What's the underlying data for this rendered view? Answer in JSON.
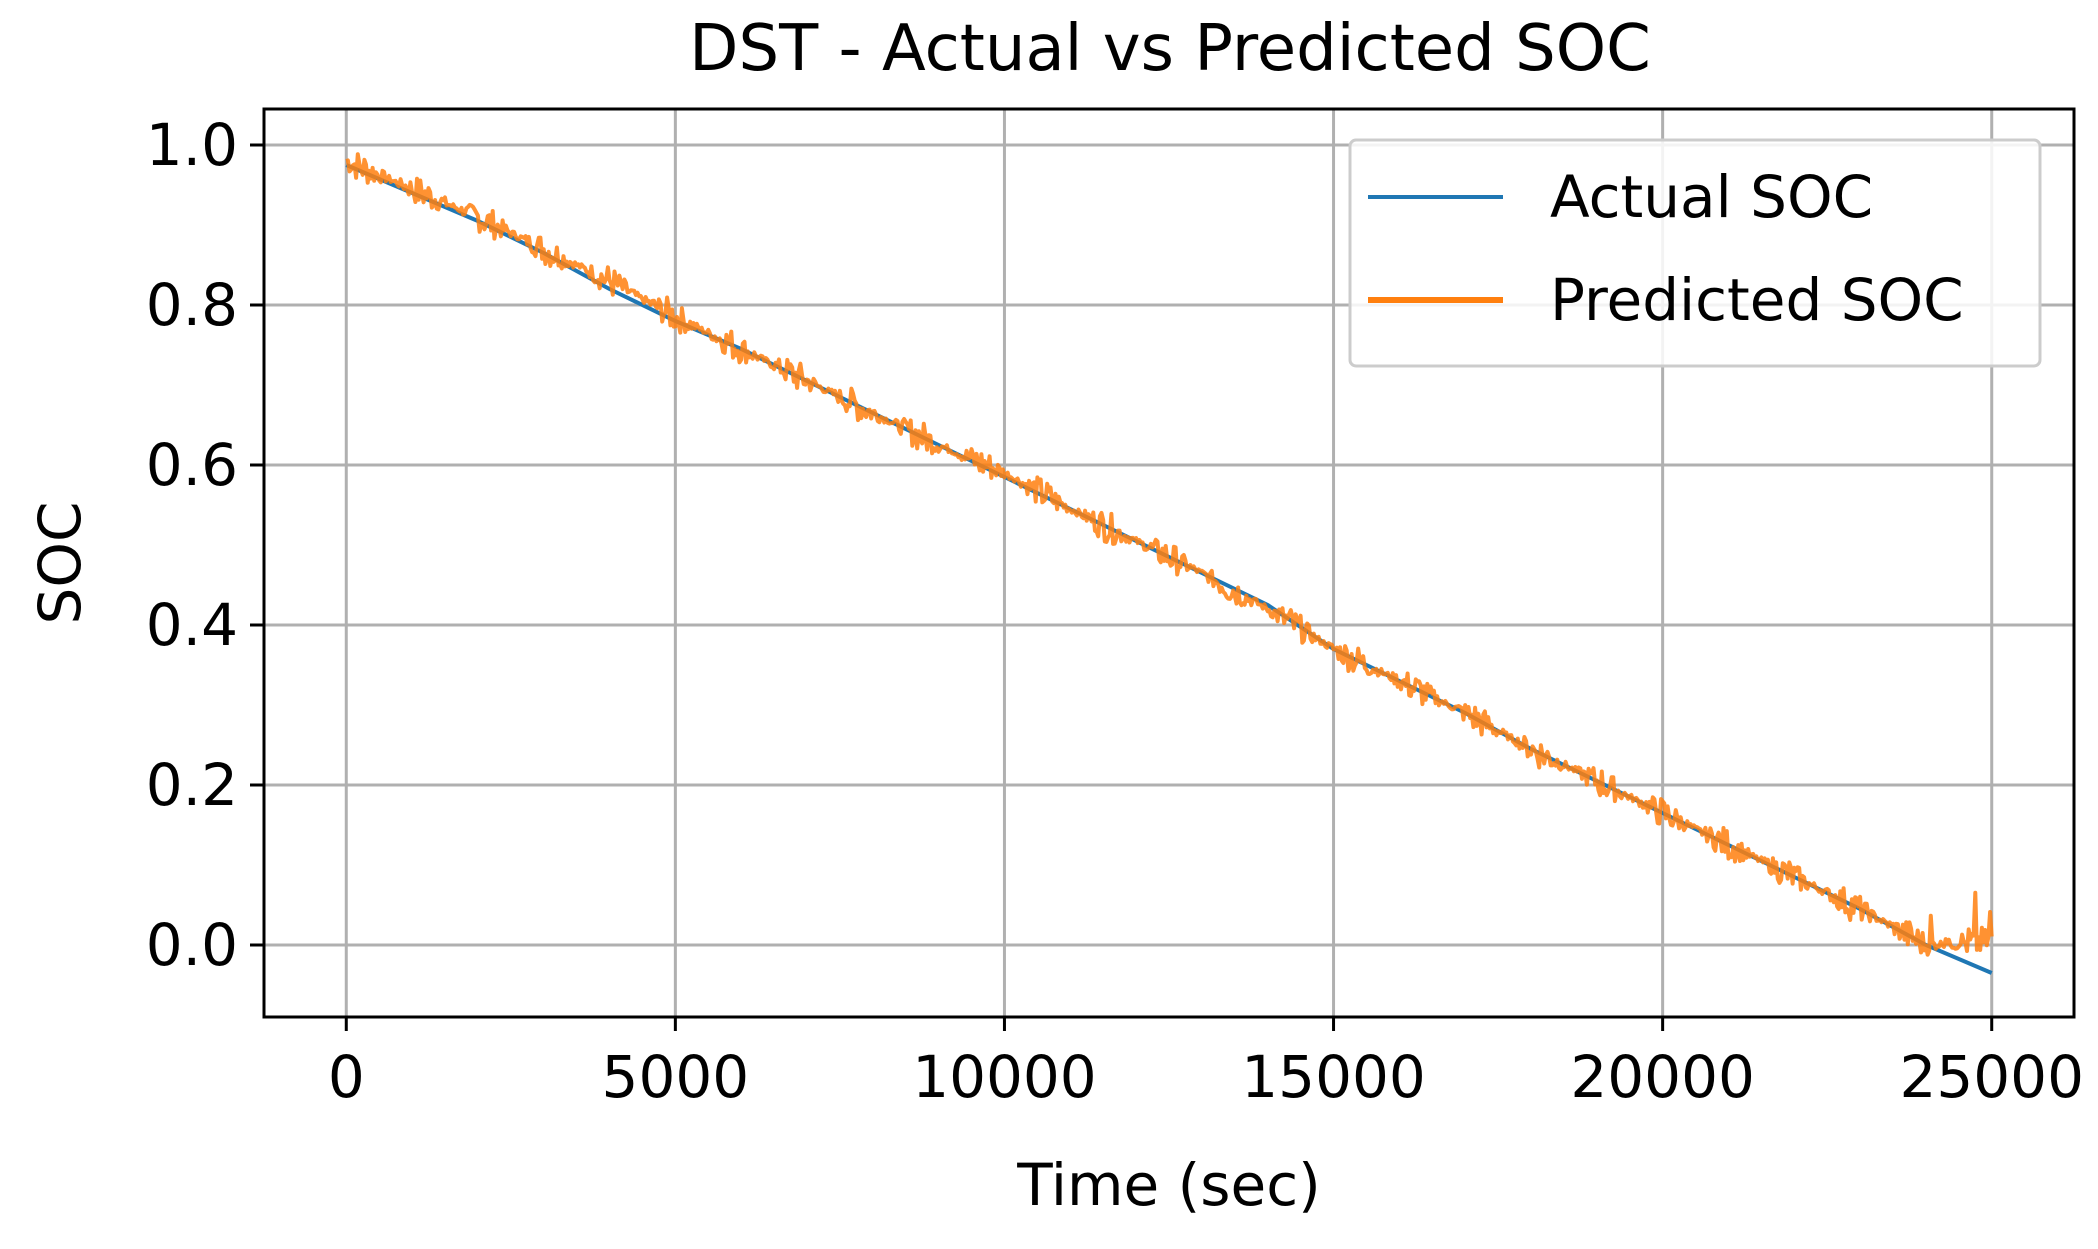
{
  "chart_data": {
    "type": "line",
    "title": "DST - Actual vs Predicted SOC",
    "xlabel": "Time (sec)",
    "ylabel": "SOC",
    "xlim": [
      -1250,
      26250
    ],
    "ylim": [
      -0.09,
      1.045
    ],
    "grid": true,
    "legend_position": "top-right",
    "x_ticks": [
      0,
      5000,
      10000,
      15000,
      20000,
      25000
    ],
    "x_tick_labels": [
      "0",
      "5000",
      "10000",
      "15000",
      "20000",
      "25000"
    ],
    "y_ticks": [
      0.0,
      0.2,
      0.4,
      0.6,
      0.8,
      1.0
    ],
    "y_tick_labels": [
      "0.0",
      "0.2",
      "0.4",
      "0.6",
      "0.8",
      "1.0"
    ],
    "series": [
      {
        "name": "Actual SOC",
        "color": "#1f77b4",
        "x": [
          0,
          1000,
          2000,
          3000,
          4000,
          5000,
          6000,
          7000,
          8000,
          9000,
          10000,
          11000,
          12000,
          13000,
          14000,
          15000,
          16000,
          17000,
          18000,
          19000,
          20000,
          21000,
          22000,
          23000,
          24000,
          25000
        ],
        "y": [
          0.975,
          0.94,
          0.905,
          0.865,
          0.82,
          0.78,
          0.745,
          0.705,
          0.665,
          0.625,
          0.585,
          0.545,
          0.505,
          0.465,
          0.425,
          0.37,
          0.33,
          0.29,
          0.245,
          0.205,
          0.165,
          0.125,
          0.085,
          0.045,
          0.0,
          -0.035
        ]
      },
      {
        "name": "Predicted SOC",
        "color": "#ff7f0e",
        "x": [
          0,
          1000,
          2000,
          3000,
          4000,
          5000,
          6000,
          7000,
          8000,
          9000,
          10000,
          11000,
          12000,
          13000,
          14000,
          15000,
          16000,
          17000,
          18000,
          19000,
          20000,
          21000,
          22000,
          23000,
          24000,
          25000
        ],
        "y": [
          0.98,
          0.945,
          0.91,
          0.87,
          0.83,
          0.785,
          0.745,
          0.705,
          0.665,
          0.625,
          0.59,
          0.545,
          0.505,
          0.465,
          0.42,
          0.37,
          0.33,
          0.29,
          0.245,
          0.205,
          0.165,
          0.125,
          0.085,
          0.045,
          0.0,
          0.005
        ],
        "fluctuation_amplitude": 0.02
      }
    ]
  }
}
